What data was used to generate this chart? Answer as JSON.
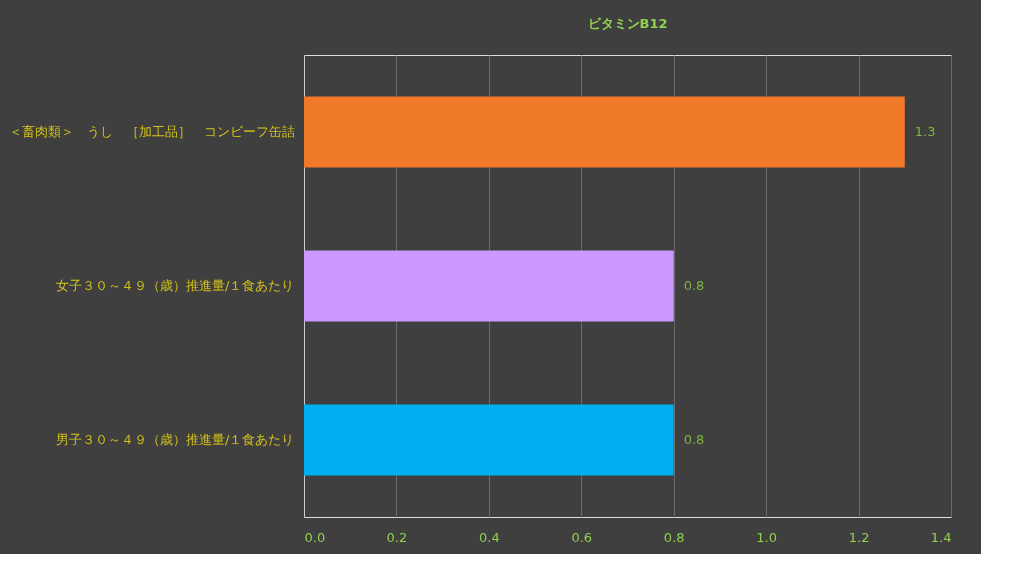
{
  "chart_data": {
    "type": "bar",
    "orientation": "horizontal",
    "title": "ビタミンB12",
    "categories": [
      "＜畜肉類＞　うし　［加工品］　コンビーフ缶詰",
      "女子３０～４９（歳）推進量/１食あたり",
      "男子３０～４９（歳）推進量/１食あたり"
    ],
    "values": [
      1.3,
      0.8,
      0.8
    ],
    "colors": [
      "#f07a2a",
      "#cc99ff",
      "#00b0f0"
    ],
    "xlim": [
      0,
      1.4
    ],
    "xticks": [
      {
        "value": 0,
        "label": "0.0"
      },
      0.2,
      0.4,
      0.6,
      0.8,
      {
        "value": 1,
        "label": "1.0"
      },
      1.2,
      1.4
    ],
    "grid": "x",
    "data_labels": true
  }
}
